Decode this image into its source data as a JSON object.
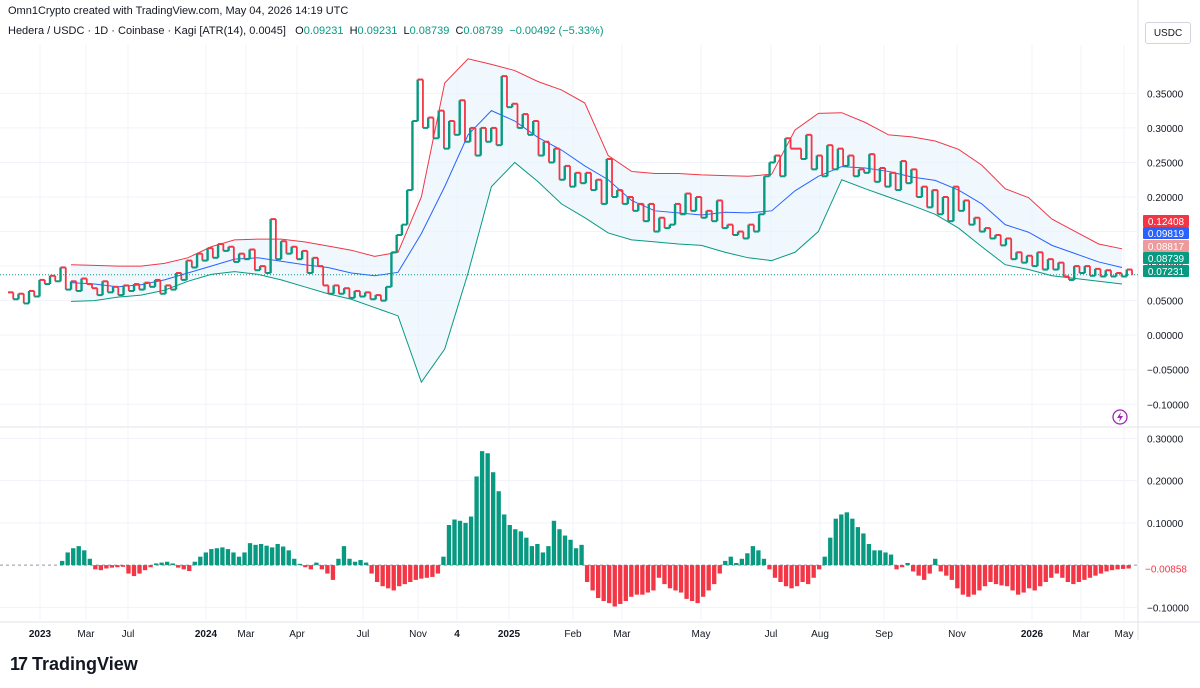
{
  "header": {
    "created_by": "Omn1Crypto created with TradingView.com, May 04, 2026 14:19 UTC"
  },
  "legend": {
    "symbol": "Hedera / USDC · 1D · Coinbase · Kagi [ATR(14), 0.0045]",
    "o_label": "O",
    "o_value": "0.09231",
    "h_label": "H",
    "h_value": "0.09231",
    "l_label": "L",
    "l_value": "0.08739",
    "c_label": "C",
    "c_value": "0.08739",
    "change": "−0.00492 (−5.33%)"
  },
  "currency": "USDC",
  "footer": {
    "brand": "TradingView",
    "logo_mark": "17"
  },
  "colors": {
    "up": "#089981",
    "down": "#f23645",
    "upper_band": "#f23645",
    "lower_band": "#089981",
    "basis": "#2962ff",
    "band_fill": "#e3f2fd",
    "grid": "#f0f3fa",
    "text": "#131722"
  },
  "chart_data": [
    {
      "type": "line",
      "title": "Hedera / USDC · 1D · Coinbase · Kagi [ATR(14), 0.0045]",
      "ylim": [
        -0.13,
        0.42
      ],
      "y_ticks": [
        "0.35000",
        "0.30000",
        "0.25000",
        "0.20000",
        "0.15000",
        "0.10000",
        "0.05000",
        "0.00000",
        "−0.05000",
        "−0.10000"
      ],
      "y_tick_values": [
        0.35,
        0.3,
        0.25,
        0.2,
        0.15,
        0.1,
        0.05,
        0.0,
        -0.05,
        -0.1
      ],
      "x_ticks": [
        "2023",
        "Mar",
        "Jul",
        "2024",
        "Mar",
        "Apr",
        "Jul",
        "Nov",
        "4",
        "2025",
        "Feb",
        "Mar",
        "May",
        "Jul",
        "Aug",
        "Sep",
        "Nov",
        "2026",
        "Mar",
        "May"
      ],
      "price_labels": [
        {
          "text": "0.12408",
          "value": 0.12408,
          "color": "#f23645"
        },
        {
          "text": "0.09819",
          "value": 0.09819,
          "color": "#2962ff"
        },
        {
          "text": "0.08817",
          "value": 0.08817,
          "color": "#ef9a9a"
        },
        {
          "text": "0.08739",
          "value": 0.08739,
          "color": "#089981"
        },
        {
          "text": "0.07231",
          "value": 0.07231,
          "color": "#089981"
        }
      ],
      "last_price": 0.08739,
      "kagi": [
        0.062,
        0.052,
        0.06,
        0.046,
        0.064,
        0.056,
        0.08,
        0.074,
        0.086,
        0.078,
        0.098,
        0.066,
        0.078,
        0.064,
        0.082,
        0.074,
        0.068,
        0.058,
        0.078,
        0.062,
        0.07,
        0.058,
        0.072,
        0.064,
        0.074,
        0.066,
        0.076,
        0.07,
        0.08,
        0.06,
        0.072,
        0.066,
        0.09,
        0.08,
        0.108,
        0.098,
        0.118,
        0.108,
        0.126,
        0.112,
        0.132,
        0.122,
        0.128,
        0.106,
        0.118,
        0.11,
        0.124,
        0.094,
        0.1,
        0.09,
        0.168,
        0.11,
        0.136,
        0.118,
        0.128,
        0.11,
        0.122,
        0.09,
        0.112,
        0.1,
        0.072,
        0.06,
        0.072,
        0.06,
        0.068,
        0.054,
        0.064,
        0.056,
        0.062,
        0.052,
        0.058,
        0.05,
        0.07,
        0.12,
        0.145,
        0.16,
        0.21,
        0.31,
        0.37,
        0.3,
        0.315,
        0.285,
        0.325,
        0.27,
        0.31,
        0.29,
        0.34,
        0.28,
        0.3,
        0.26,
        0.3,
        0.28,
        0.3,
        0.275,
        0.375,
        0.33,
        0.335,
        0.3,
        0.32,
        0.29,
        0.31,
        0.26,
        0.28,
        0.25,
        0.27,
        0.225,
        0.245,
        0.215,
        0.235,
        0.22,
        0.235,
        0.21,
        0.225,
        0.19,
        0.255,
        0.2,
        0.21,
        0.19,
        0.2,
        0.18,
        0.19,
        0.165,
        0.19,
        0.15,
        0.17,
        0.155,
        0.16,
        0.19,
        0.175,
        0.205,
        0.18,
        0.2,
        0.17,
        0.18,
        0.165,
        0.195,
        0.155,
        0.16,
        0.145,
        0.15,
        0.14,
        0.16,
        0.15,
        0.175,
        0.23,
        0.25,
        0.26,
        0.23,
        0.285,
        0.27,
        0.27,
        0.255,
        0.29,
        0.24,
        0.26,
        0.23,
        0.275,
        0.24,
        0.27,
        0.245,
        0.26,
        0.23,
        0.24,
        0.235,
        0.262,
        0.222,
        0.242,
        0.215,
        0.235,
        0.21,
        0.252,
        0.22,
        0.24,
        0.2,
        0.215,
        0.185,
        0.21,
        0.175,
        0.2,
        0.165,
        0.215,
        0.18,
        0.195,
        0.16,
        0.17,
        0.15,
        0.155,
        0.14,
        0.145,
        0.13,
        0.14,
        0.11,
        0.12,
        0.105,
        0.115,
        0.1,
        0.12,
        0.095,
        0.11,
        0.095,
        0.105,
        0.085,
        0.08,
        0.1,
        0.09,
        0.1,
        0.086,
        0.096,
        0.085,
        0.094,
        0.085,
        0.09,
        0.085,
        0.095,
        0.087
      ],
      "bands": {
        "x_start_index": 12,
        "upper": [
          0.102,
          0.101,
          0.1,
          0.1,
          0.104,
          0.112,
          0.128,
          0.138,
          0.139,
          0.139,
          0.135,
          0.129,
          0.123,
          0.114,
          0.12,
          0.2,
          0.365,
          0.4,
          0.392,
          0.383,
          0.367,
          0.355,
          0.336,
          0.26,
          0.237,
          0.234,
          0.234,
          0.232,
          0.231,
          0.23,
          0.233,
          0.297,
          0.321,
          0.322,
          0.308,
          0.29,
          0.287,
          0.281,
          0.269,
          0.246,
          0.212,
          0.199,
          0.168,
          0.15,
          0.132,
          0.125
        ],
        "basis": [
          0.076,
          0.074,
          0.07,
          0.073,
          0.08,
          0.09,
          0.1,
          0.11,
          0.112,
          0.107,
          0.102,
          0.098,
          0.09,
          0.086,
          0.091,
          0.147,
          0.215,
          0.29,
          0.325,
          0.31,
          0.286,
          0.268,
          0.245,
          0.225,
          0.195,
          0.18,
          0.177,
          0.174,
          0.178,
          0.177,
          0.18,
          0.209,
          0.23,
          0.244,
          0.242,
          0.237,
          0.229,
          0.224,
          0.21,
          0.19,
          0.16,
          0.149,
          0.13,
          0.118,
          0.106,
          0.098
        ],
        "lower": [
          0.049,
          0.05,
          0.055,
          0.058,
          0.065,
          0.078,
          0.088,
          0.092,
          0.088,
          0.08,
          0.07,
          0.06,
          0.052,
          0.04,
          0.028,
          -0.068,
          -0.02,
          0.09,
          0.215,
          0.25,
          0.222,
          0.19,
          0.17,
          0.148,
          0.138,
          0.135,
          0.132,
          0.13,
          0.12,
          0.112,
          0.108,
          0.12,
          0.15,
          0.225,
          0.212,
          0.2,
          0.188,
          0.175,
          0.155,
          0.128,
          0.102,
          0.095,
          0.086,
          0.082,
          0.078,
          0.074
        ]
      }
    },
    {
      "type": "bar",
      "ylim": [
        -0.13,
        0.32
      ],
      "y_ticks": [
        "0.30000",
        "0.20000",
        "0.10000",
        "−0.10000"
      ],
      "y_tick_values": [
        0.3,
        0.2,
        0.1,
        -0.1
      ],
      "last_value_label": "−0.00858",
      "last_value": -0.00858,
      "values": [
        0.01,
        0.03,
        0.04,
        0.045,
        0.035,
        0.015,
        -0.01,
        -0.012,
        -0.008,
        -0.006,
        -0.005,
        -0.004,
        -0.02,
        -0.026,
        -0.02,
        -0.012,
        -0.005,
        0.004,
        0.006,
        0.008,
        0.004,
        -0.006,
        -0.01,
        -0.014,
        0.008,
        0.02,
        0.03,
        0.038,
        0.04,
        0.042,
        0.038,
        0.03,
        0.02,
        0.03,
        0.052,
        0.048,
        0.05,
        0.046,
        0.042,
        0.05,
        0.044,
        0.035,
        0.015,
        0.003,
        -0.005,
        -0.01,
        0.006,
        -0.01,
        -0.02,
        -0.035,
        0.015,
        0.045,
        0.015,
        0.008,
        0.012,
        0.006,
        -0.02,
        -0.04,
        -0.05,
        -0.055,
        -0.06,
        -0.05,
        -0.045,
        -0.04,
        -0.035,
        -0.032,
        -0.03,
        -0.028,
        -0.02,
        0.02,
        0.095,
        0.108,
        0.105,
        0.1,
        0.115,
        0.21,
        0.27,
        0.265,
        0.22,
        0.175,
        0.12,
        0.095,
        0.085,
        0.08,
        0.065,
        0.045,
        0.05,
        0.03,
        0.045,
        0.105,
        0.085,
        0.07,
        0.06,
        0.04,
        0.048,
        -0.04,
        -0.06,
        -0.078,
        -0.085,
        -0.09,
        -0.098,
        -0.092,
        -0.085,
        -0.075,
        -0.07,
        -0.07,
        -0.065,
        -0.06,
        -0.03,
        -0.045,
        -0.055,
        -0.06,
        -0.065,
        -0.08,
        -0.085,
        -0.09,
        -0.075,
        -0.06,
        -0.045,
        -0.02,
        0.01,
        0.02,
        0.005,
        0.015,
        0.028,
        0.045,
        0.035,
        0.015,
        -0.01,
        -0.03,
        -0.04,
        -0.05,
        -0.055,
        -0.05,
        -0.04,
        -0.045,
        -0.03,
        -0.01,
        0.02,
        0.065,
        0.11,
        0.12,
        0.125,
        0.11,
        0.09,
        0.075,
        0.05,
        0.035,
        0.035,
        0.03,
        0.025,
        -0.01,
        -0.005,
        0.005,
        -0.015,
        -0.025,
        -0.035,
        -0.02,
        0.015,
        -0.015,
        -0.025,
        -0.035,
        -0.055,
        -0.07,
        -0.075,
        -0.07,
        -0.06,
        -0.05,
        -0.04,
        -0.045,
        -0.048,
        -0.05,
        -0.06,
        -0.07,
        -0.065,
        -0.055,
        -0.06,
        -0.05,
        -0.04,
        -0.03,
        -0.02,
        -0.03,
        -0.04,
        -0.045,
        -0.04,
        -0.035,
        -0.03,
        -0.025,
        -0.02,
        -0.015,
        -0.012,
        -0.01,
        -0.009,
        -0.008
      ]
    }
  ]
}
